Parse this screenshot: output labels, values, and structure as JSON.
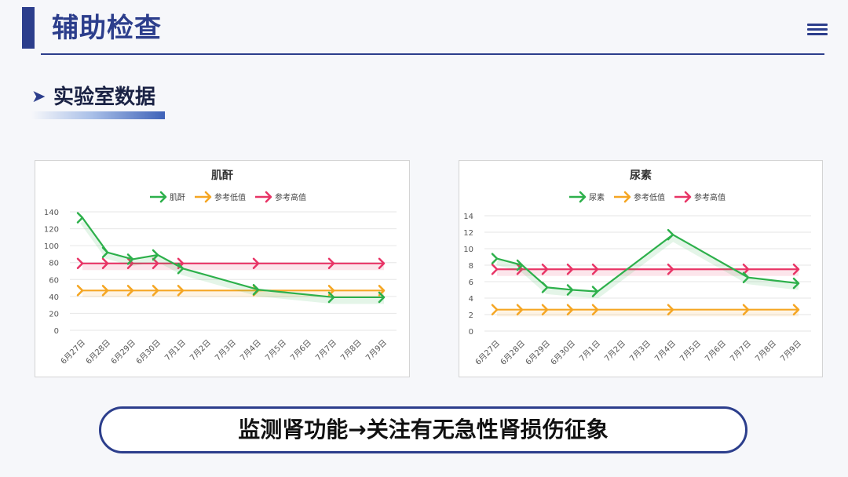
{
  "page": {
    "title": "辅助检查",
    "section_title": "实验室数据",
    "summary": "监测肾功能→关注有无急性肾损伤征象"
  },
  "colors": {
    "primary": "#2c3e8c",
    "series_value": "#2db04b",
    "series_low": "#f5a623",
    "series_high": "#e83466"
  },
  "icons": {
    "menu": "hamburger-menu-icon",
    "section_bullet": "chevron-right-icon"
  },
  "chart_data": [
    {
      "type": "line",
      "title": "肌酐",
      "categories": [
        "6月27日",
        "6月28日",
        "6月29日",
        "6月30日",
        "7月1日",
        "7月2日",
        "7月3日",
        "7月4日",
        "7月5日",
        "7月6日",
        "7月7日",
        "7月8日",
        "7月9日"
      ],
      "ylim": [
        0,
        140
      ],
      "yticks": [
        0,
        20,
        40,
        60,
        80,
        100,
        120,
        140
      ],
      "grid": true,
      "legend_position": "top",
      "series": [
        {
          "name": "肌酐",
          "color": "#2db04b",
          "values": [
            133,
            92,
            84,
            89,
            73,
            null,
            null,
            48,
            null,
            null,
            39,
            null,
            39
          ]
        },
        {
          "name": "参考低值",
          "color": "#f5a623",
          "values": [
            47,
            47,
            47,
            47,
            47,
            null,
            null,
            47,
            null,
            null,
            47,
            null,
            47
          ]
        },
        {
          "name": "参考高值",
          "color": "#e83466",
          "values": [
            79,
            79,
            79,
            79,
            79,
            null,
            null,
            79,
            null,
            null,
            79,
            null,
            79
          ]
        }
      ]
    },
    {
      "type": "line",
      "title": "尿素",
      "categories": [
        "6月27日",
        "6月28日",
        "6月29日",
        "6月30日",
        "7月1日",
        "7月2日",
        "7月3日",
        "7月4日",
        "7月5日",
        "7月6日",
        "7月7日",
        "7月8日",
        "7月9日"
      ],
      "ylim": [
        0,
        14
      ],
      "yticks": [
        0,
        2,
        4,
        6,
        8,
        10,
        12,
        14
      ],
      "grid": true,
      "legend_position": "top",
      "series": [
        {
          "name": "尿素",
          "color": "#2db04b",
          "values": [
            8.8,
            8.0,
            5.3,
            5.0,
            4.8,
            null,
            null,
            11.7,
            null,
            null,
            6.5,
            null,
            5.8
          ]
        },
        {
          "name": "参考低值",
          "color": "#f5a623",
          "values": [
            2.6,
            2.6,
            2.6,
            2.6,
            2.6,
            null,
            null,
            2.6,
            null,
            null,
            2.6,
            null,
            2.6
          ]
        },
        {
          "name": "参考高值",
          "color": "#e83466",
          "values": [
            7.5,
            7.5,
            7.5,
            7.5,
            7.5,
            null,
            null,
            7.5,
            null,
            null,
            7.5,
            null,
            7.5
          ]
        }
      ]
    }
  ]
}
